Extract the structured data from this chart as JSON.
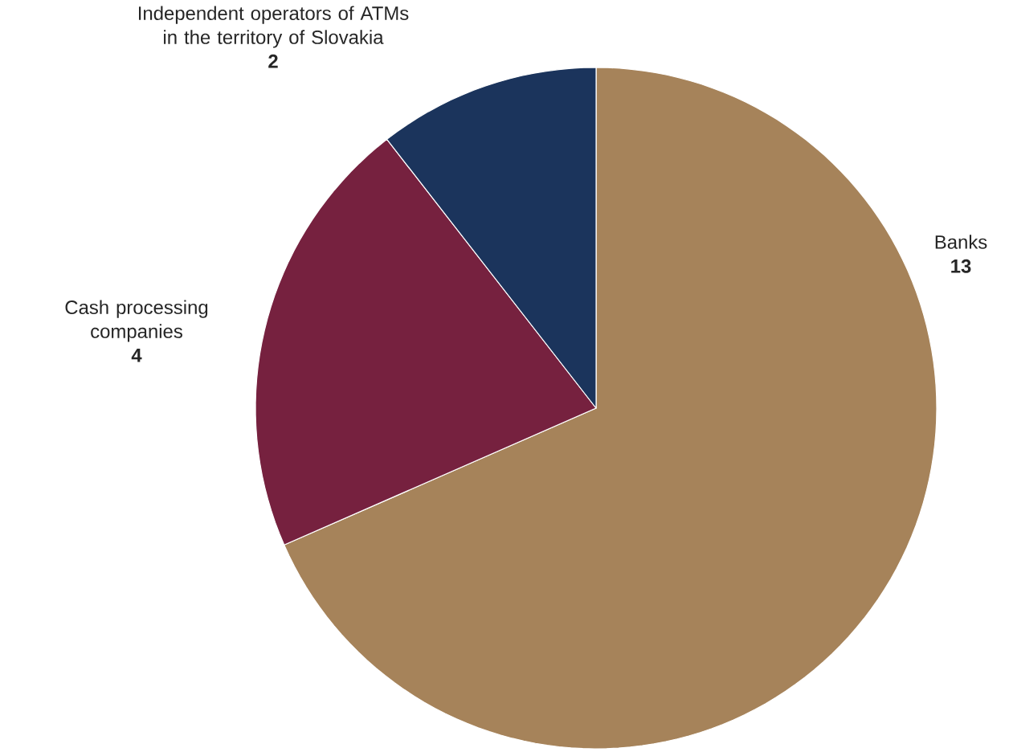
{
  "chart_data": {
    "type": "pie",
    "categories": [
      "Banks",
      "Cash processing companies",
      "Independent operators of ATMs in the territory of Slovakia"
    ],
    "values": [
      13,
      4,
      2
    ],
    "colors": [
      "#a6835a",
      "#76213f",
      "#1b345c"
    ],
    "data_labels": true
  }
}
